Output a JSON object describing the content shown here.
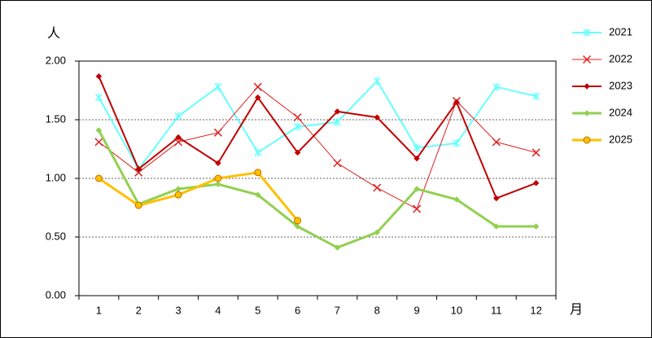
{
  "chart_data": {
    "type": "line",
    "y_label": "人",
    "x_label": "月",
    "categories": [
      "1",
      "2",
      "3",
      "4",
      "5",
      "6",
      "7",
      "8",
      "9",
      "10",
      "11",
      "12"
    ],
    "ylim": [
      0,
      2
    ],
    "yticks": [
      {
        "value": 0,
        "label": "0.00"
      },
      {
        "value": 0.5,
        "label": "0.50"
      },
      {
        "value": 1,
        "label": "1.00"
      },
      {
        "value": 1.5,
        "label": "1.50"
      },
      {
        "value": 2,
        "label": "2.00"
      }
    ],
    "grid": true,
    "legend": "right",
    "series": [
      {
        "name": "2021",
        "color": "#66ffff",
        "marker": "asterisk",
        "width": 2,
        "values": [
          1.69,
          1.08,
          1.53,
          1.78,
          1.22,
          1.44,
          1.48,
          1.83,
          1.26,
          1.3,
          1.78,
          1.7
        ]
      },
      {
        "name": "2022",
        "color": "#e02020",
        "marker": "x",
        "width": 1,
        "values": [
          1.31,
          1.05,
          1.31,
          1.39,
          1.78,
          1.52,
          1.13,
          0.92,
          0.74,
          1.66,
          1.31,
          1.22
        ]
      },
      {
        "name": "2023",
        "color": "#c00000",
        "marker": "diamond",
        "width": 2,
        "values": [
          1.87,
          1.08,
          1.35,
          1.13,
          1.69,
          1.22,
          1.57,
          1.52,
          1.17,
          1.65,
          0.83,
          0.96
        ]
      },
      {
        "name": "2024",
        "color": "#92d050",
        "marker": "diamond",
        "width": 3,
        "values": [
          1.41,
          0.78,
          0.91,
          0.95,
          0.86,
          0.59,
          0.41,
          0.54,
          0.91,
          0.82,
          0.59,
          0.59
        ]
      },
      {
        "name": "2025",
        "color": "#ffc000",
        "marker": "circle",
        "width": 3,
        "values": [
          1.0,
          0.77,
          0.86,
          1.0,
          1.05,
          0.64,
          null,
          null,
          null,
          null,
          null,
          null
        ]
      }
    ]
  }
}
